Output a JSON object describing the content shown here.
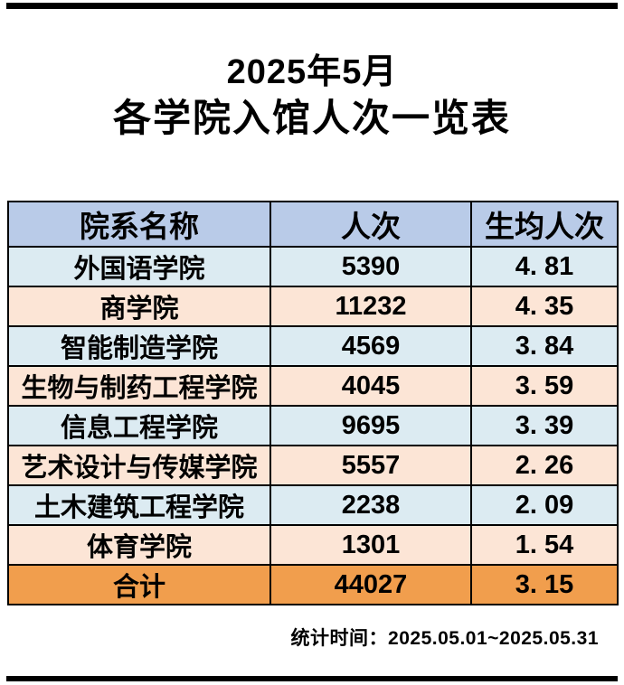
{
  "title": {
    "line1": "2025年5月",
    "line2": "各学院入馆人次一览表"
  },
  "table": {
    "headers": {
      "department": "院系名称",
      "visits": "人次",
      "per_student": "生均人次"
    },
    "rows": [
      {
        "department": "外国语学院",
        "visits": "5390",
        "per_student": "4. 81"
      },
      {
        "department": "商学院",
        "visits": "11232",
        "per_student": "4. 35"
      },
      {
        "department": "智能制造学院",
        "visits": "4569",
        "per_student": "3. 84"
      },
      {
        "department": "生物与制药工程学院",
        "visits": "4045",
        "per_student": "3. 59"
      },
      {
        "department": "信息工程学院",
        "visits": "9695",
        "per_student": "3. 39"
      },
      {
        "department": "艺术设计与传媒学院",
        "visits": "5557",
        "per_student": "2. 26"
      },
      {
        "department": "土木建筑工程学院",
        "visits": "2238",
        "per_student": "2. 09"
      },
      {
        "department": "体育学院",
        "visits": "1301",
        "per_student": "1. 54"
      }
    ],
    "total_row": {
      "department": "合计",
      "visits": "44027",
      "per_student": "3. 15"
    }
  },
  "footer": {
    "stat_time": "统计时间：2025.05.01~2025.05.31"
  },
  "colors": {
    "header_bg": "#b9cbe8",
    "row_blue_bg": "#dcebf2",
    "row_peach_bg": "#fce5d6",
    "total_row_bg": "#f19e4d",
    "border": "#000000",
    "rule": "#000000",
    "text": "#000000"
  },
  "chart_data": {
    "type": "table",
    "title": "2025年5月 各学院入馆人次一览表",
    "columns": [
      "院系名称",
      "人次",
      "生均人次"
    ],
    "departments": [
      "外国语学院",
      "商学院",
      "智能制造学院",
      "生物与制药工程学院",
      "信息工程学院",
      "艺术设计与传媒学院",
      "土木建筑工程学院",
      "体育学院"
    ],
    "visits": [
      5390,
      11232,
      4569,
      4045,
      9695,
      5557,
      2238,
      1301
    ],
    "per_student": [
      4.81,
      4.35,
      3.84,
      3.59,
      3.39,
      2.26,
      2.09,
      1.54
    ],
    "total": {
      "label": "合计",
      "visits": 44027,
      "per_student": 3.15
    },
    "period": "2025.05.01~2025.05.31"
  }
}
